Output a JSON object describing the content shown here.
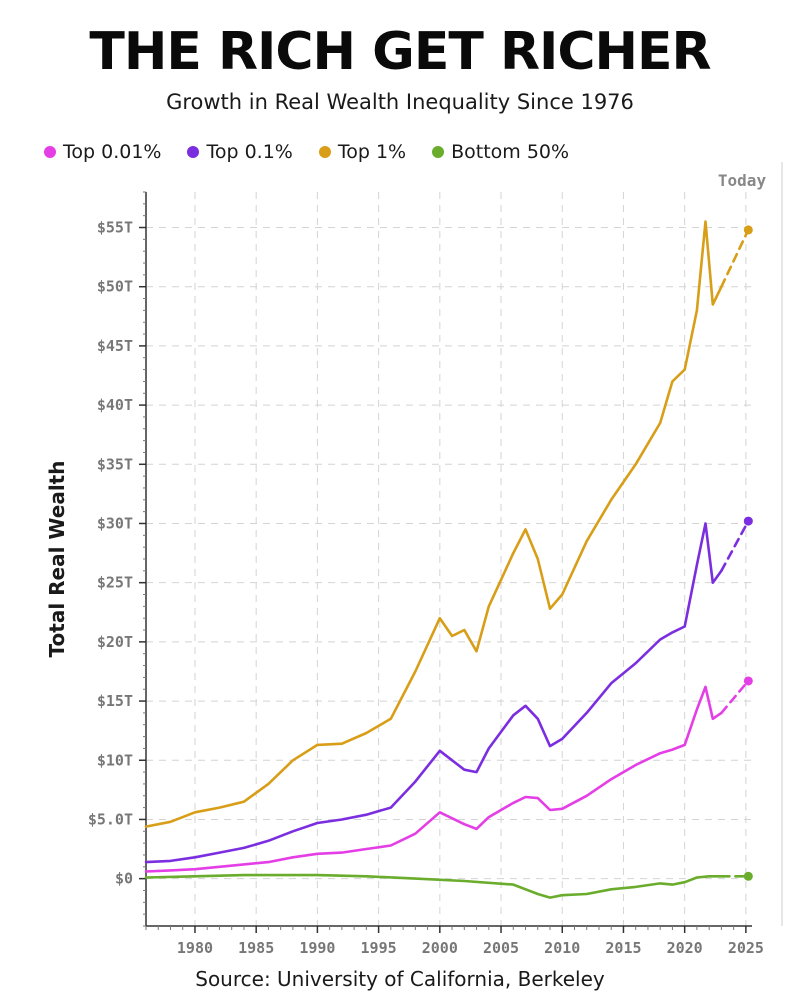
{
  "chart_data": {
    "type": "line",
    "title": "THE RICH GET RICHER",
    "subtitle": "Growth in Real Wealth Inequality Since 1976",
    "ylabel": "Total Real Wealth",
    "xlabel": "",
    "source": "Source: University of California, Berkeley",
    "today_label": "Today",
    "xlim": [
      1976,
      2025.5
    ],
    "ylim": [
      -4,
      58
    ],
    "x_ticks": [
      1980,
      1985,
      1990,
      1995,
      2000,
      2005,
      2010,
      2015,
      2020,
      2025
    ],
    "y_ticks": [
      {
        "value": 0,
        "label": "$0"
      },
      {
        "value": 5,
        "label": "$5.0T"
      },
      {
        "value": 10,
        "label": "$10T"
      },
      {
        "value": 15,
        "label": "$15T"
      },
      {
        "value": 20,
        "label": "$20T"
      },
      {
        "value": 25,
        "label": "$25T"
      },
      {
        "value": 30,
        "label": "$30T"
      },
      {
        "value": 35,
        "label": "$35T"
      },
      {
        "value": 40,
        "label": "$40T"
      },
      {
        "value": 45,
        "label": "$45T"
      },
      {
        "value": 50,
        "label": "$50T"
      },
      {
        "value": 55,
        "label": "$55T"
      }
    ],
    "grid": true,
    "legend_position": "top-left",
    "series": [
      {
        "name": "Top 0.01%",
        "color": "#e43ee6",
        "x": [
          1976,
          1978,
          1980,
          1982,
          1984,
          1986,
          1988,
          1990,
          1992,
          1994,
          1996,
          1998,
          2000,
          2001,
          2002,
          2003,
          2004,
          2006,
          2007,
          2008,
          2009,
          2010,
          2012,
          2014,
          2016,
          2018,
          2019,
          2020,
          2021,
          2021.7,
          2022.3,
          2023
        ],
        "y": [
          0.6,
          0.7,
          0.8,
          1.0,
          1.2,
          1.4,
          1.8,
          2.1,
          2.2,
          2.5,
          2.8,
          3.8,
          5.6,
          5.1,
          4.6,
          4.2,
          5.2,
          6.4,
          6.9,
          6.8,
          5.8,
          5.9,
          7.0,
          8.4,
          9.6,
          10.6,
          10.9,
          11.3,
          14.3,
          16.2,
          13.5,
          14.0
        ],
        "x_projection": [
          2023,
          2025.2
        ],
        "y_projection": [
          14.0,
          16.7
        ]
      },
      {
        "name": "Top 0.1%",
        "color": "#7b2ee0",
        "x": [
          1976,
          1978,
          1980,
          1982,
          1984,
          1986,
          1988,
          1990,
          1992,
          1994,
          1996,
          1998,
          2000,
          2001,
          2002,
          2003,
          2004,
          2006,
          2007,
          2008,
          2009,
          2010,
          2012,
          2014,
          2016,
          2018,
          2019,
          2020,
          2021,
          2021.7,
          2022.3,
          2023
        ],
        "y": [
          1.4,
          1.5,
          1.8,
          2.2,
          2.6,
          3.2,
          4.0,
          4.7,
          5.0,
          5.4,
          6.0,
          8.2,
          10.8,
          10.0,
          9.2,
          9.0,
          11.0,
          13.8,
          14.6,
          13.5,
          11.2,
          11.8,
          14.0,
          16.5,
          18.2,
          20.2,
          20.8,
          21.3,
          26.5,
          30.0,
          25.0,
          26.0
        ],
        "x_projection": [
          2023,
          2025.2
        ],
        "y_projection": [
          26.0,
          30.2
        ]
      },
      {
        "name": "Top 1%",
        "color": "#d89e18",
        "x": [
          1976,
          1978,
          1980,
          1982,
          1984,
          1986,
          1988,
          1990,
          1992,
          1994,
          1996,
          1998,
          2000,
          2001,
          2002,
          2003,
          2004,
          2006,
          2007,
          2008,
          2009,
          2010,
          2012,
          2014,
          2016,
          2018,
          2019,
          2020,
          2021,
          2021.7,
          2022.3,
          2023
        ],
        "y": [
          4.4,
          4.8,
          5.6,
          6.0,
          6.5,
          8.0,
          10.0,
          11.3,
          11.4,
          12.3,
          13.5,
          17.5,
          22.0,
          20.5,
          21.0,
          19.2,
          23.0,
          27.5,
          29.5,
          27.0,
          22.8,
          24.0,
          28.5,
          32.0,
          35.0,
          38.5,
          42.0,
          43.0,
          48.0,
          55.5,
          48.5,
          50.0
        ],
        "x_projection": [
          2023,
          2025.2
        ],
        "y_projection": [
          50.0,
          54.8
        ]
      },
      {
        "name": "Bottom 50%",
        "color": "#6aac2c",
        "x": [
          1976,
          1980,
          1984,
          1988,
          1990,
          1994,
          1998,
          2002,
          2006,
          2008,
          2009,
          2010,
          2012,
          2014,
          2016,
          2018,
          2019,
          2020,
          2021,
          2022,
          2023
        ],
        "y": [
          0.1,
          0.2,
          0.3,
          0.3,
          0.3,
          0.2,
          0.0,
          -0.2,
          -0.5,
          -1.3,
          -1.6,
          -1.4,
          -1.3,
          -0.9,
          -0.7,
          -0.4,
          -0.5,
          -0.3,
          0.1,
          0.2,
          0.2
        ],
        "x_projection": [
          2023,
          2025.2
        ],
        "y_projection": [
          0.2,
          0.2
        ]
      }
    ]
  }
}
